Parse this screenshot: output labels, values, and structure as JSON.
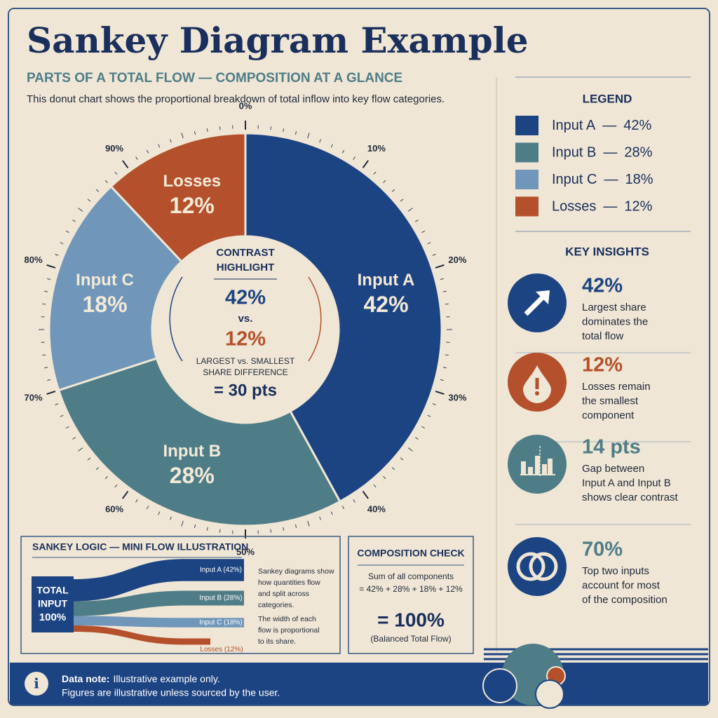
{
  "header": {
    "title": "Sankey Diagram Example",
    "subtitle": "PARTS OF A TOTAL FLOW — COMPOSITION AT A GLANCE",
    "description": "This donut chart shows the proportional breakdown of total inflow into key flow categories."
  },
  "chart_data": {
    "type": "donut",
    "categories": [
      "Input A",
      "Input B",
      "Input C",
      "Losses"
    ],
    "values": [
      42,
      28,
      18,
      12
    ],
    "value_labels": [
      "42%",
      "28%",
      "18%",
      "12%"
    ],
    "colors": [
      "#1d4482",
      "#4f7d87",
      "#7096b9",
      "#b4502b"
    ],
    "ticks": [
      {
        "value": 0,
        "label": "0%"
      },
      {
        "value": 10,
        "label": "10%"
      },
      {
        "value": 20,
        "label": "20%"
      },
      {
        "value": 30,
        "label": "30%"
      },
      {
        "value": 40,
        "label": "40%"
      },
      {
        "value": 50,
        "label": "50%"
      },
      {
        "value": 60,
        "label": "60%"
      },
      {
        "value": 70,
        "label": "70%"
      },
      {
        "value": 80,
        "label": "80%"
      },
      {
        "value": 90,
        "label": "90%"
      }
    ],
    "annotation": {
      "heading_lines": [
        "CONTRAST",
        "HIGHLIGHT"
      ],
      "top": "42%",
      "vs": "vs.",
      "bottom": "12%",
      "caption_lines": [
        "LARGEST vs. SMALLEST",
        "SHARE DIFFERENCE"
      ],
      "result": "= 30 pts"
    }
  },
  "legend": {
    "title": "LEGEND",
    "separator": "—"
  },
  "insights": {
    "title": "KEY INSIGHTS",
    "items": [
      {
        "value": "42%",
        "lines": [
          "Largest share",
          "dominates the",
          "total flow"
        ]
      },
      {
        "value": "12%",
        "lines": [
          "Losses remain",
          "the smallest",
          "component"
        ]
      },
      {
        "value": "14 pts",
        "lines": [
          "Gap between",
          "Input A and Input B",
          "shows clear contrast"
        ]
      },
      {
        "value": "70%",
        "lines": [
          "Top two inputs",
          "account for most",
          "of the composition"
        ]
      }
    ]
  },
  "sankey_panel": {
    "title": "SANKEY LOGIC — MINI FLOW ILLUSTRATION",
    "source_lines": [
      "TOTAL",
      "INPUT",
      "100%"
    ],
    "flow_labels": [
      "Input A (42%)",
      "Input B (28%)",
      "Input C (18%)",
      "Losses (12%)"
    ],
    "notes": [
      "Sankey diagrams show",
      "how quantities flow",
      "and split across",
      "categories.",
      "The width of each",
      "flow is proportional",
      "to its share."
    ]
  },
  "composition": {
    "title": "COMPOSITION CHECK",
    "lines": [
      "Sum of all components",
      "= 42% + 28% + 18% + 12%"
    ],
    "result": "= 100%",
    "caption": "(Balanced Total Flow)"
  },
  "footer": {
    "icon": "i",
    "label": "Data note:",
    "note": "Illustrative example only.",
    "line2": "Figures are illustrative unless sourced by the user."
  }
}
